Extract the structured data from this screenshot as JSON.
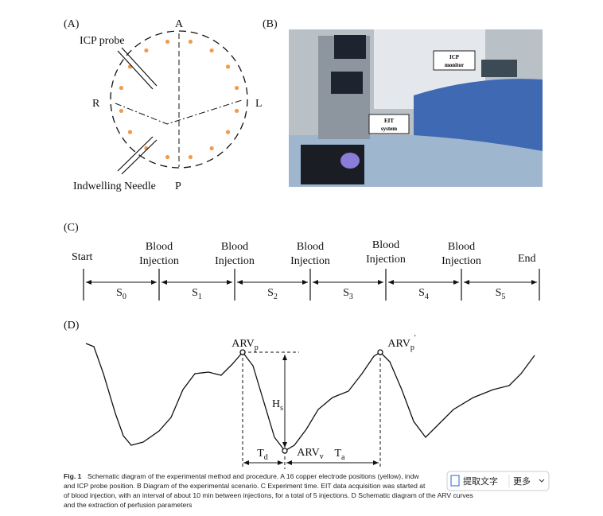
{
  "panel_a": {
    "label": "(A)",
    "top": "A",
    "probe": "ICP probe",
    "left": "R",
    "right": "L",
    "needle": "Indwelling Needle",
    "bottom": "P"
  },
  "panel_b": {
    "label": "(B)",
    "icp": [
      "ICP",
      "monitor"
    ],
    "eit": [
      "EIT",
      "system"
    ]
  },
  "panel_c": {
    "label": "(C)",
    "start": "Start",
    "end": "End",
    "event": [
      "Blood",
      "Injection"
    ],
    "segments": [
      {
        "base": "S",
        "sub": "0"
      },
      {
        "base": "S",
        "sub": "1"
      },
      {
        "base": "S",
        "sub": "2"
      },
      {
        "base": "S",
        "sub": "3"
      },
      {
        "base": "S",
        "sub": "4"
      },
      {
        "base": "S",
        "sub": "5"
      }
    ]
  },
  "panel_d": {
    "label": "(D)",
    "peak": {
      "base": "ARV",
      "sub": "p"
    },
    "peak2": {
      "base": "ARV",
      "sub": "p",
      "sup": "'"
    },
    "height": {
      "base": "H",
      "sub": "s"
    },
    "descend": {
      "base": "T",
      "sub": "d"
    },
    "valley": {
      "base": "ARV",
      "sub": "v"
    },
    "ascend": {
      "base": "T",
      "sub": "a"
    }
  },
  "caption": {
    "fig": "Fig. 1",
    "lines": [
      "Schematic diagram of the experimental method and procedure. A 16 copper electrode positions (yellow), indw",
      "and ICP probe position. B Diagram of the experimental scenario. C Experiment time. EIT data acquisition was started at",
      "of blood injection, with an interval of about 10 min between injections, for a total of 5 injections. D Schematic diagram of the ARV curves",
      "and the extraction of perfusion parameters"
    ]
  },
  "overlay": {
    "extract": "提取文字",
    "more": "更多"
  }
}
